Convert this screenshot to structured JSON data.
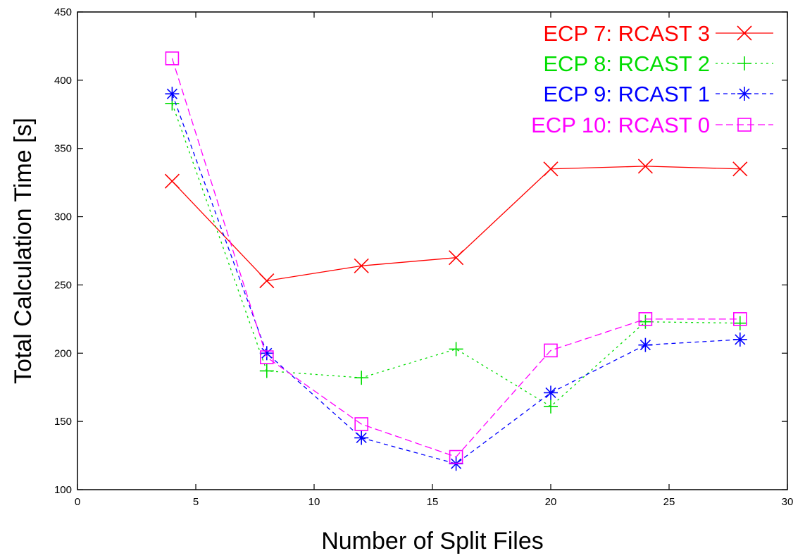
{
  "chart_data": {
    "type": "line",
    "title": "",
    "xlabel": "Number of Split Files",
    "ylabel": "Total Calculation Time [s]",
    "xlim": [
      0,
      30
    ],
    "ylim": [
      100,
      450
    ],
    "xticks": [
      0,
      5,
      10,
      15,
      20,
      25,
      30
    ],
    "yticks": [
      100,
      150,
      200,
      250,
      300,
      350,
      400,
      450
    ],
    "grid": false,
    "legend_position": "top-right",
    "x": [
      4,
      8,
      12,
      16,
      20,
      24,
      28
    ],
    "series": [
      {
        "name": "ECP 7: RCAST 3",
        "color": "#ff0000",
        "marker": "x",
        "dash": "solid",
        "values": [
          326,
          253,
          264,
          270,
          335,
          337,
          335
        ]
      },
      {
        "name": "ECP 8: RCAST 2",
        "color": "#00dd00",
        "marker": "plus",
        "dash": "dotted",
        "values": [
          383,
          187,
          182,
          203,
          161,
          223,
          222
        ]
      },
      {
        "name": "ECP 9: RCAST 1",
        "color": "#0000ff",
        "marker": "star",
        "dash": "dashed",
        "values": [
          390,
          200,
          138,
          119,
          171,
          206,
          210
        ]
      },
      {
        "name": "ECP 10: RCAST 0",
        "color": "#ff00ff",
        "marker": "square",
        "dash": "long-dashed",
        "values": [
          416,
          197,
          148,
          124,
          202,
          225,
          225
        ]
      }
    ]
  }
}
